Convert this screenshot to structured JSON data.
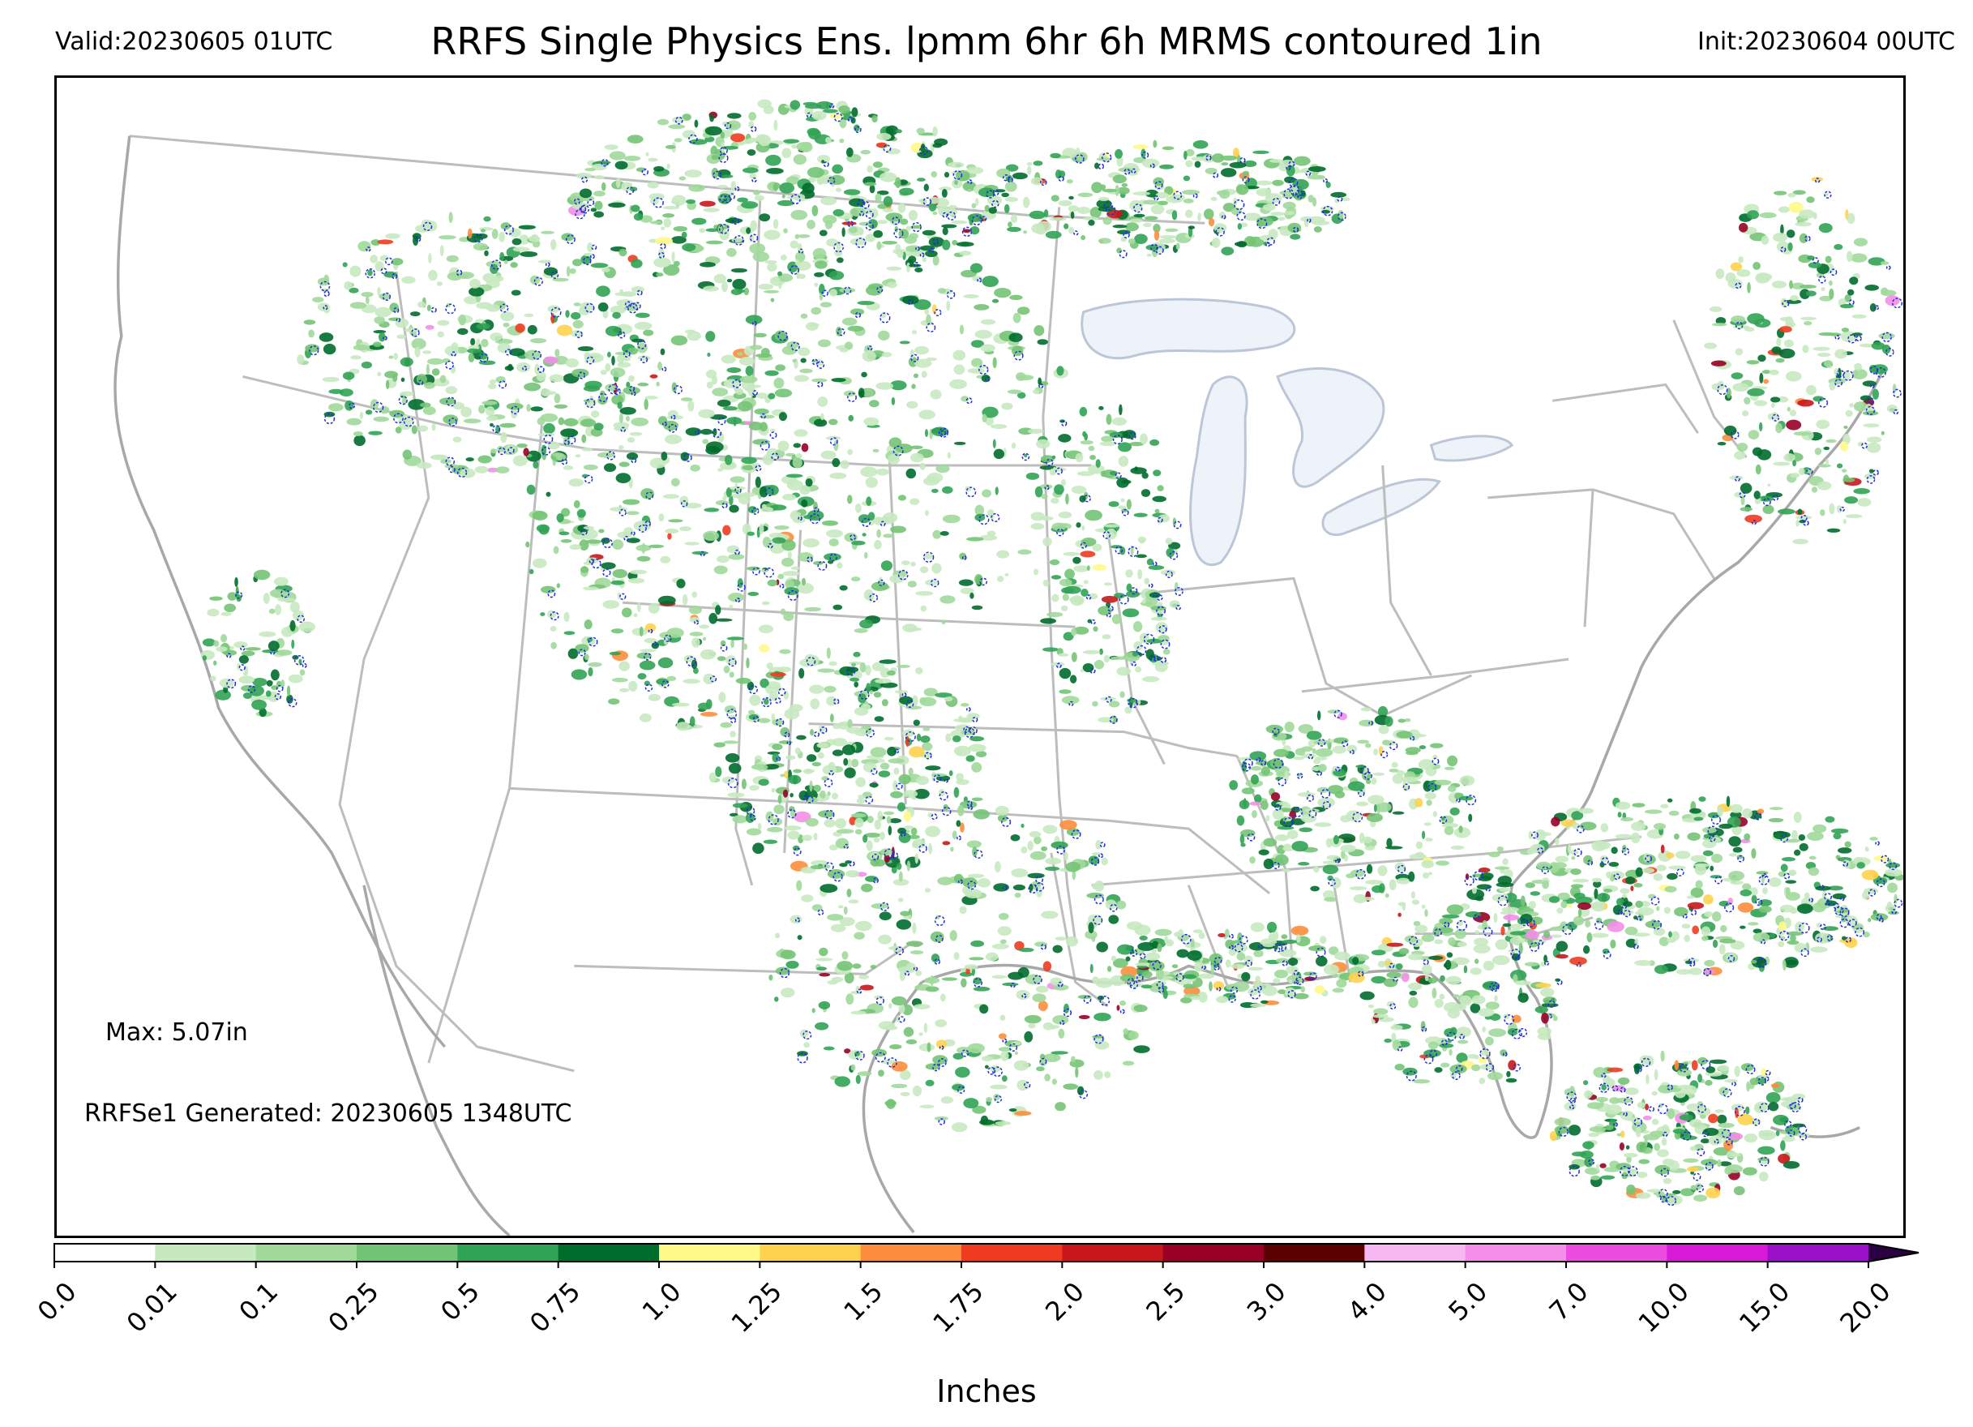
{
  "header": {
    "valid": "Valid:20230605 01UTC",
    "title": "RRFS Single Physics Ens. lpmm 6hr 6h MRMS contoured 1in",
    "init": "Init:20230604 00UTC"
  },
  "annotations": {
    "max": "Max: 5.07in",
    "generated": "RRFSe1 Generated: 20230605 1348UTC"
  },
  "colorbar": {
    "title": "Inches",
    "ticks": [
      "0.0",
      "0.01",
      "0.1",
      "0.25",
      "0.5",
      "0.75",
      "1.0",
      "1.25",
      "1.5",
      "1.75",
      "2.0",
      "2.5",
      "3.0",
      "4.0",
      "5.0",
      "7.0",
      "10.0",
      "15.0",
      "20.0"
    ],
    "colors": [
      "#ffffff",
      "#c7e9c0",
      "#a1d99b",
      "#74c476",
      "#31a354",
      "#006d2c",
      "#fff98a",
      "#ffd24d",
      "#fd8d3c",
      "#f03b20",
      "#c8171c",
      "#990026",
      "#5a0000",
      "#f7b7f0",
      "#f48ee8",
      "#ec4de0",
      "#d81ad8",
      "#9a10c8"
    ],
    "extend_color": "#2a0040"
  },
  "map": {
    "state_line_color": "#bdbdbd",
    "coast_color": "#a8a8a8",
    "lake_fill": "#eef3fa",
    "mrms_contour_color": "#1f2fd6"
  }
}
